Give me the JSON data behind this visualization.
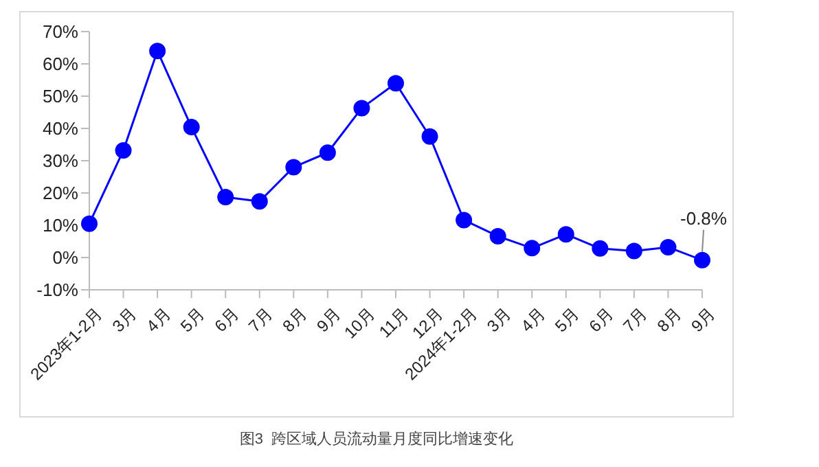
{
  "chart_data": {
    "type": "line",
    "title": "图3  跨区域人员流动量月度同比增速变化",
    "categories": [
      "2023年1-2月",
      "3月",
      "4月",
      "5月",
      "6月",
      "7月",
      "8月",
      "9月",
      "10月",
      "11月",
      "12月",
      "2024年1-2月",
      "3月",
      "4月",
      "5月",
      "6月",
      "7月",
      "8月",
      "9月"
    ],
    "series": [
      {
        "color": "#0000ff",
        "values": [
          10.5,
          33.2,
          64,
          40.4,
          18.7,
          17.4,
          28,
          32.5,
          46.3,
          54,
          37.5,
          11.6,
          6.6,
          2.9,
          7.2,
          2.8,
          2.0,
          3.2,
          -0.8
        ]
      }
    ],
    "ylim": [
      -10,
      70
    ],
    "yticks": [
      {
        "value": -10,
        "label": "-10%"
      },
      {
        "value": 0,
        "label": "0%"
      },
      {
        "value": 10,
        "label": "10%"
      },
      {
        "value": 20,
        "label": "20%"
      },
      {
        "value": 30,
        "label": "30%"
      },
      {
        "value": 40,
        "label": "40%"
      },
      {
        "value": 50,
        "label": "50%"
      },
      {
        "value": 60,
        "label": "60%"
      },
      {
        "value": 70,
        "label": "70%"
      }
    ],
    "annotations": [
      "-0.8%"
    ],
    "grid": false,
    "legend": false,
    "marker": "circle",
    "line_style": "solid"
  }
}
